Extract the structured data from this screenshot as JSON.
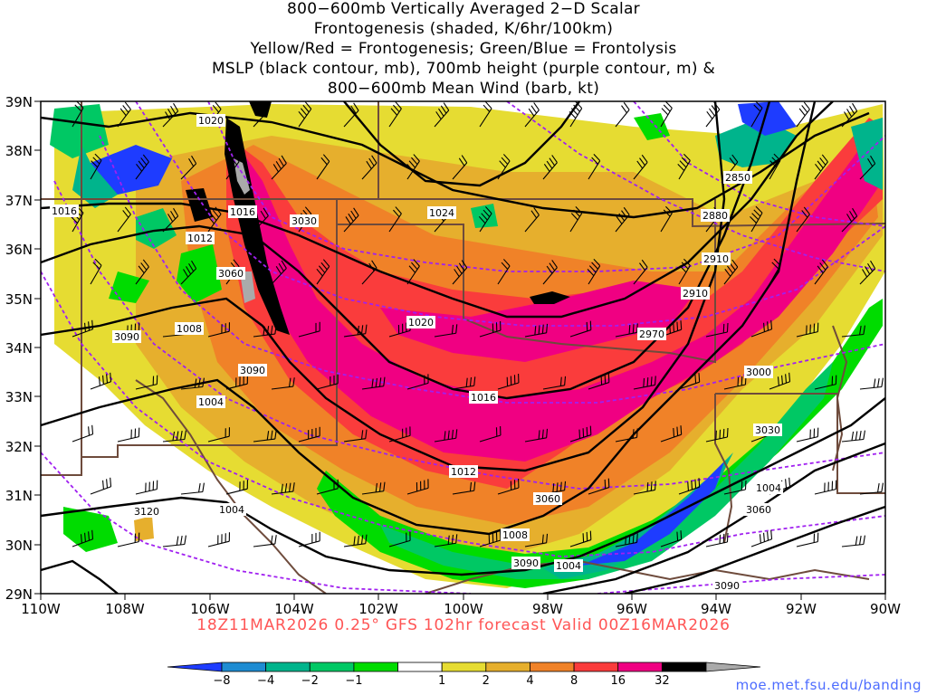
{
  "title_lines": [
    "800−600mb Vertically Averaged 2−D Scalar",
    "Frontogenesis (shaded, K/6hr/100km)",
    "Yellow/Red = Frontogenesis;  Green/Blue = Frontolysis",
    "MSLP (black contour, mb), 700mb height (purple contour, m) &",
    "800−600mb Mean Wind (barb, kt)"
  ],
  "lat_labels": [
    "39N",
    "38N",
    "37N",
    "36N",
    "35N",
    "34N",
    "33N",
    "32N",
    "31N",
    "30N",
    "29N"
  ],
  "lon_labels": [
    "110W",
    "108W",
    "106W",
    "104W",
    "102W",
    "100W",
    "98W",
    "96W",
    "94W",
    "92W",
    "90W"
  ],
  "footer": "18Z11MAR2026 0.25° GFS 102hr forecast Valid 00Z16MAR2026",
  "credit": "moe.met.fsu.edu/banding",
  "colorbar": {
    "labels": [
      "−8",
      "−4",
      "−2",
      "−1",
      "1",
      "2",
      "4",
      "8",
      "16",
      "32"
    ],
    "colors": [
      "#1e3cff",
      "#1e8cd2",
      "#00b48c",
      "#00c864",
      "#00dc00",
      "#ffffff",
      "#e6dc32",
      "#e6af2d",
      "#f08228",
      "#fa3c3c",
      "#f00082",
      "#000000",
      "#aaaaaa"
    ]
  },
  "mslp_labels": [
    "1020",
    "1016",
    "1016",
    "1012",
    "1008",
    "1004",
    "1024",
    "1020",
    "1016",
    "1012",
    "1008",
    "1004",
    "1004",
    "1004"
  ],
  "height_labels": [
    "3030",
    "3060",
    "3090",
    "3090",
    "3120",
    "2850",
    "2880",
    "2910",
    "2910",
    "2970",
    "3000",
    "3030",
    "3060",
    "3060",
    "3090",
    "3090"
  ]
}
